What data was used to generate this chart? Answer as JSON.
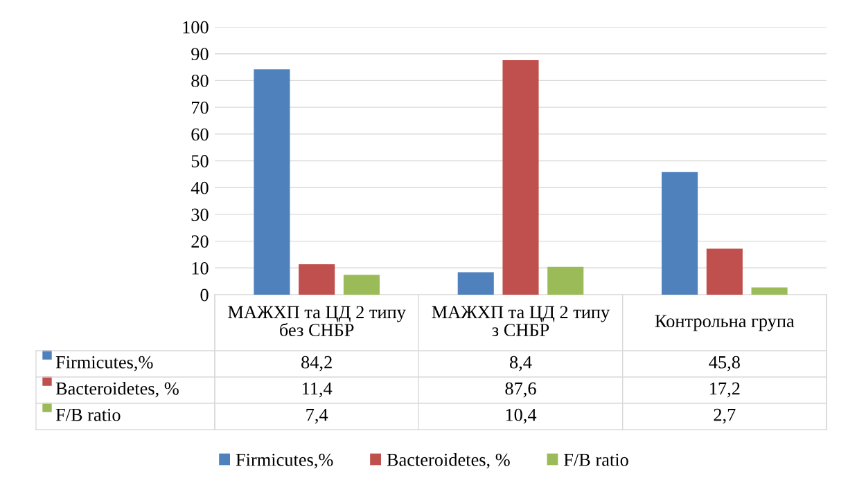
{
  "chart_data": {
    "type": "bar",
    "categories": [
      "МАЖХП та ЦД 2 типу без СНБР",
      "МАЖХП та ЦД 2 типу з СНБР",
      "Контрольна група"
    ],
    "series": [
      {
        "name": "Firmicutes,%",
        "color": "#4f81bd",
        "values": [
          84.2,
          8.4,
          45.8
        ],
        "value_labels": [
          "84,2",
          "8,4",
          "45,8"
        ]
      },
      {
        "name": "Bacteroidetes, %",
        "color": "#c0504d",
        "values": [
          11.4,
          87.6,
          17.2
        ],
        "value_labels": [
          "11,4",
          "87,6",
          "17,2"
        ]
      },
      {
        "name": "F/B ratio",
        "color": "#9bbb59",
        "values": [
          7.4,
          10.4,
          2.7
        ],
        "value_labels": [
          "7,4",
          "10,4",
          "2,7"
        ]
      }
    ],
    "ylim": [
      0,
      100
    ],
    "yticks": [
      0,
      10,
      20,
      30,
      40,
      50,
      60,
      70,
      80,
      90,
      100
    ],
    "grid": "y",
    "legend": "bottom"
  }
}
